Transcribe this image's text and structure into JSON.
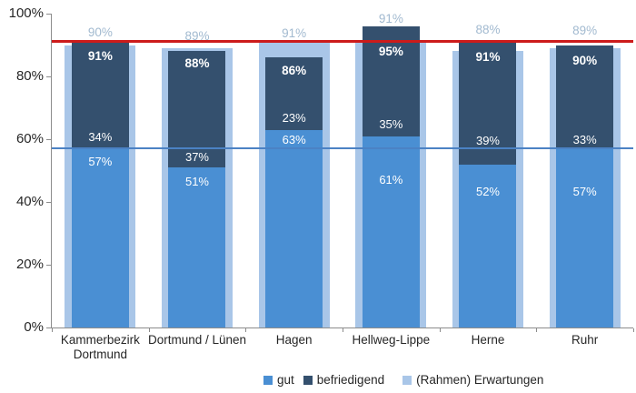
{
  "chart_data": {
    "type": "bar",
    "stacked": true,
    "title": "",
    "xlabel": "",
    "ylabel": "",
    "ylim": [
      0,
      100
    ],
    "grid": false,
    "legend_position": "bottom",
    "y_ticks": [
      "100%",
      "80%",
      "60%",
      "40%",
      "20%",
      "0%"
    ],
    "categories": [
      "Kammerbezirk Dortmund",
      "Dortmund / Lünen",
      "Hagen",
      "Hellweg-Lippe",
      "Herne",
      "Ruhr"
    ],
    "series": [
      {
        "name": "gut",
        "color": "#4a8fd3",
        "values": [
          57,
          51,
          63,
          61,
          52,
          57
        ]
      },
      {
        "name": "befriedigend",
        "color": "#34506e",
        "values": [
          34,
          37,
          23,
          35,
          39,
          33
        ]
      },
      {
        "name": "(Rahmen) Erwartungen",
        "color": "#a9c6e8",
        "values": [
          90,
          89,
          91,
          91,
          88,
          89
        ]
      }
    ],
    "totals": [
      91,
      88,
      86,
      95,
      91,
      90
    ],
    "total_labels": [
      "91%",
      "88%",
      "86%",
      "95%",
      "91%",
      "90%"
    ],
    "erwartungen_labels": [
      "90%",
      "89%",
      "91%",
      "91%",
      "88%",
      "89%"
    ],
    "reference_lines": [
      {
        "name": "red-target-line",
        "value": 91,
        "color": "#cc1b1b",
        "thickness": 3
      },
      {
        "name": "blue-target-line",
        "value": 57,
        "color": "#4b82c4",
        "thickness": 2
      }
    ],
    "label_layout": {
      "gut_center": [
        52.7,
        46.3,
        59.8,
        47.0,
        43.3,
        43.3
      ],
      "befr_center": [
        60.5,
        54.2,
        66.7,
        64.6,
        59.4,
        59.7
      ],
      "total_center": [
        86.4,
        84.1,
        81.7,
        87.8,
        86.1,
        84.9
      ],
      "erw_center": [
        93.9,
        92.8,
        93.6,
        98.4,
        94.8,
        94.6
      ]
    },
    "colors": {
      "axis": "#8c8c8c",
      "axis_text": "#262626",
      "value_label": "#ffffff",
      "erwartungen_label": "#a2bad0"
    }
  },
  "legend": {
    "items": [
      {
        "label": "gut",
        "color": "#4a8fd3"
      },
      {
        "label": "befriedigend",
        "color": "#34506e"
      },
      {
        "label": "(Rahmen) Erwartungen",
        "color": "#a9c6e8"
      }
    ]
  }
}
